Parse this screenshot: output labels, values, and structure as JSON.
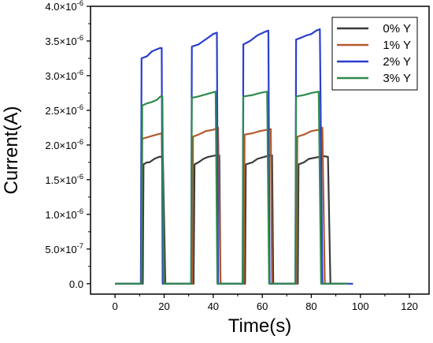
{
  "chart_data": {
    "type": "line",
    "title": "",
    "xlabel": "Time(s)",
    "ylabel": "Current(A)",
    "xlim": [
      -10,
      128
    ],
    "ylim": [
      -1.5e-07,
      4e-06
    ],
    "x_ticks": [
      0,
      20,
      40,
      60,
      80,
      100,
      120
    ],
    "x_tick_labels": [
      "0",
      "20",
      "40",
      "60",
      "80",
      "100",
      "120"
    ],
    "y_ticks": [
      0,
      5e-07,
      1e-06,
      1.5e-06,
      2e-06,
      2.5e-06,
      3e-06,
      3.5e-06,
      4e-06
    ],
    "y_tick_labels": [
      {
        "mantissa": "0.0",
        "exponent": ""
      },
      {
        "mantissa": "5.0×10",
        "exponent": "-7"
      },
      {
        "mantissa": "1.0×10",
        "exponent": "-6"
      },
      {
        "mantissa": "1.5×10",
        "exponent": "-6"
      },
      {
        "mantissa": "2.0×10",
        "exponent": "-6"
      },
      {
        "mantissa": "2.5×10",
        "exponent": "-6"
      },
      {
        "mantissa": "3.0×10",
        "exponent": "-6"
      },
      {
        "mantissa": "3.5×10",
        "exponent": "-6"
      },
      {
        "mantissa": "4.0×10",
        "exponent": "-6"
      }
    ],
    "grid": false,
    "legend_position": "top-right",
    "series": [
      {
        "name": "0% Y",
        "color": "#3a3a3a",
        "points": [
          [
            0,
            0
          ],
          [
            11.3,
            0
          ],
          [
            11.6,
            1.72e-06
          ],
          [
            13,
            1.75e-06
          ],
          [
            14,
            1.75e-06
          ],
          [
            16,
            1.8e-06
          ],
          [
            18,
            1.83e-06
          ],
          [
            19.5,
            1.83e-06
          ],
          [
            20.5,
            0
          ],
          [
            32,
            0
          ],
          [
            32.4,
            1.72e-06
          ],
          [
            34,
            1.75e-06
          ],
          [
            36,
            1.8e-06
          ],
          [
            38,
            1.83e-06
          ],
          [
            41,
            1.85e-06
          ],
          [
            42.5,
            1.85e-06
          ],
          [
            43,
            0
          ],
          [
            53,
            0
          ],
          [
            53.3,
            1.72e-06
          ],
          [
            56,
            1.75e-06
          ],
          [
            58,
            1.8e-06
          ],
          [
            60,
            1.82e-06
          ],
          [
            63,
            1.85e-06
          ],
          [
            64,
            1.85e-06
          ],
          [
            64.5,
            0
          ],
          [
            74.5,
            0
          ],
          [
            74.8,
            1.72e-06
          ],
          [
            77,
            1.75e-06
          ],
          [
            79,
            1.8e-06
          ],
          [
            82,
            1.82e-06
          ],
          [
            85,
            1.84e-06
          ],
          [
            86.8,
            1.83e-06
          ],
          [
            87.8,
            0
          ],
          [
            95,
            0
          ]
        ]
      },
      {
        "name": "1% Y",
        "color": "#b35a2c",
        "points": [
          [
            0,
            0
          ],
          [
            10.8,
            0
          ],
          [
            11.1,
            2.09e-06
          ],
          [
            14,
            2.12e-06
          ],
          [
            17,
            2.15e-06
          ],
          [
            19,
            2.17e-06
          ],
          [
            20,
            0
          ],
          [
            31.5,
            0
          ],
          [
            31.8,
            2.12e-06
          ],
          [
            34,
            2.15e-06
          ],
          [
            37,
            2.2e-06
          ],
          [
            40,
            2.22e-06
          ],
          [
            42,
            2.25e-06
          ],
          [
            43,
            0
          ],
          [
            52.5,
            0
          ],
          [
            52.8,
            2.15e-06
          ],
          [
            56,
            2.17e-06
          ],
          [
            59,
            2.2e-06
          ],
          [
            62,
            2.22e-06
          ],
          [
            63.5,
            2.23e-06
          ],
          [
            64,
            0
          ],
          [
            74,
            0
          ],
          [
            74.3,
            2.12e-06
          ],
          [
            77,
            2.15e-06
          ],
          [
            80,
            2.2e-06
          ],
          [
            83,
            2.22e-06
          ],
          [
            84.5,
            2.25e-06
          ],
          [
            85.5,
            0
          ],
          [
            95,
            0
          ]
        ]
      },
      {
        "name": "2% Y",
        "color": "#2a3fcf",
        "points": [
          [
            0,
            0
          ],
          [
            10.5,
            0
          ],
          [
            10.8,
            3.25e-06
          ],
          [
            13,
            3.28e-06
          ],
          [
            15,
            3.35e-06
          ],
          [
            17,
            3.38e-06
          ],
          [
            18.5,
            3.4e-06
          ],
          [
            19,
            3.4e-06
          ],
          [
            19.4,
            0
          ],
          [
            31,
            0
          ],
          [
            31.3,
            3.42e-06
          ],
          [
            34,
            3.45e-06
          ],
          [
            36,
            3.5e-06
          ],
          [
            38,
            3.55e-06
          ],
          [
            40,
            3.6e-06
          ],
          [
            41.5,
            3.62e-06
          ],
          [
            42,
            0
          ],
          [
            52,
            0
          ],
          [
            52.3,
            3.45e-06
          ],
          [
            55,
            3.5e-06
          ],
          [
            58,
            3.58e-06
          ],
          [
            61,
            3.63e-06
          ],
          [
            62.5,
            3.65e-06
          ],
          [
            63,
            0
          ],
          [
            73.5,
            0
          ],
          [
            73.8,
            3.52e-06
          ],
          [
            76,
            3.55e-06
          ],
          [
            78,
            3.58e-06
          ],
          [
            80,
            3.6e-06
          ],
          [
            82,
            3.65e-06
          ],
          [
            83.5,
            3.67e-06
          ],
          [
            84.5,
            0
          ],
          [
            97,
            0
          ]
        ]
      },
      {
        "name": "3% Y",
        "color": "#2f8a4e",
        "points": [
          [
            0,
            0
          ],
          [
            10.8,
            0
          ],
          [
            11.1,
            2.57e-06
          ],
          [
            13,
            2.6e-06
          ],
          [
            15,
            2.62e-06
          ],
          [
            17,
            2.65e-06
          ],
          [
            18.5,
            2.7e-06
          ],
          [
            19.3,
            2.7e-06
          ],
          [
            19.8,
            0
          ],
          [
            31,
            0
          ],
          [
            31.3,
            2.68e-06
          ],
          [
            34,
            2.7e-06
          ],
          [
            36,
            2.72e-06
          ],
          [
            39,
            2.75e-06
          ],
          [
            41,
            2.77e-06
          ],
          [
            41.7,
            0
          ],
          [
            52,
            0
          ],
          [
            52.3,
            2.7e-06
          ],
          [
            56,
            2.72e-06
          ],
          [
            59,
            2.75e-06
          ],
          [
            62,
            2.77e-06
          ],
          [
            62.8,
            0
          ],
          [
            73.5,
            0
          ],
          [
            73.8,
            2.7e-06
          ],
          [
            77,
            2.72e-06
          ],
          [
            80,
            2.75e-06
          ],
          [
            83,
            2.77e-06
          ],
          [
            84,
            0
          ],
          [
            95,
            0
          ]
        ]
      }
    ]
  }
}
